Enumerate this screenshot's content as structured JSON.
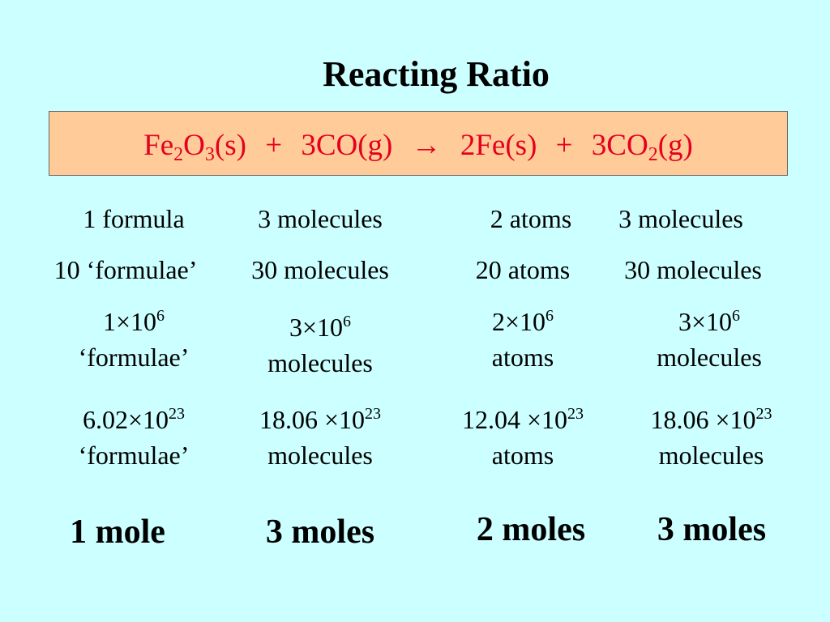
{
  "title": "Reacting Ratio",
  "equation": {
    "reactant1": {
      "a": "Fe",
      "s1": "2",
      "b": "O",
      "s2": "3",
      "c": "(s)"
    },
    "plus1": "+",
    "reactant2": "3CO(g)",
    "arrow": "→",
    "product1": "2Fe(s)",
    "plus2": "+",
    "product2": {
      "a": "3CO",
      "s1": "2",
      "b": "(g)"
    }
  },
  "rows": {
    "row1": [
      "1 formula",
      "3 molecules",
      "2 atoms",
      "3 molecules"
    ],
    "row2": [
      "10 ‘formulae’",
      "30 molecules",
      "20 atoms",
      "30 molecules"
    ],
    "row3": [
      {
        "base": "1×10",
        "exp": "6",
        "unit": "‘formulae’"
      },
      {
        "base": "3×10",
        "exp": "6",
        "unit": "molecules"
      },
      {
        "base": "2×10",
        "exp": "6",
        "unit": "atoms"
      },
      {
        "base": "3×10",
        "exp": "6",
        "unit": "molecules"
      }
    ],
    "row4": [
      {
        "base": "6.02×10",
        "exp": "23",
        "unit": "‘formulae’"
      },
      {
        "base": "18.06 ×10",
        "exp": "23",
        "unit": "molecules"
      },
      {
        "base": "12.04 ×10",
        "exp": "23",
        "unit": "atoms"
      },
      {
        "base": "18.06 ×10",
        "exp": "23",
        "unit": "molecules"
      }
    ]
  },
  "moles": [
    "1 mole",
    "3 moles",
    "2 moles",
    "3 moles"
  ]
}
